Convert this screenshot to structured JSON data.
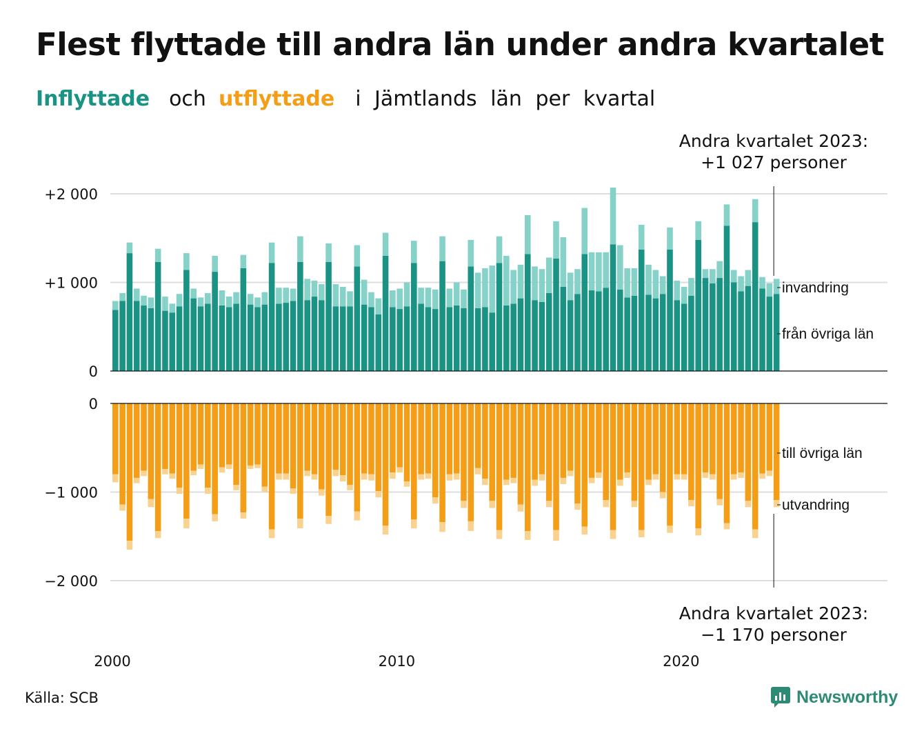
{
  "title": "Flest flyttade till andra län under andra kvartalet",
  "subtitle": {
    "inflow_word": "Inflyttade",
    "and_word": "och",
    "outflow_word": "utflyttade",
    "rest": "i Jämtlands län per kvartal"
  },
  "annotation_top": {
    "line1": "Andra kvartalet 2023:",
    "line2": "+1 027 personer"
  },
  "annotation_bottom": {
    "line1": "Andra kvartalet 2023:",
    "line2": "−1 170 personer"
  },
  "source": "Källa: SCB",
  "logo_text": "Newsworthy",
  "colors": {
    "inflow_domestic": "#1a9384",
    "inflow_immigration": "#86d1c8",
    "outflow_domestic": "#f49d17",
    "outflow_emigration": "#fad28f",
    "grid": "#dddddd"
  },
  "chart_data": [
    {
      "type": "bar",
      "stacked": true,
      "panel": "inflyttade",
      "title": "Inflyttade",
      "x_start": "2000 Q1",
      "categories_note": "kvartal 2000 Q1 – 2023 Q2",
      "x_ticks": [
        "2000",
        "2010",
        "2020"
      ],
      "y_ticks": [
        0,
        1000,
        2000
      ],
      "y_tick_labels": [
        "0",
        "+1 000",
        "+2 000"
      ],
      "ylim": [
        0,
        2070
      ],
      "grid": true,
      "series": [
        {
          "name": "från övriga län",
          "values": [
            690,
            790,
            1330,
            790,
            740,
            710,
            1230,
            680,
            660,
            730,
            1140,
            820,
            730,
            760,
            1120,
            740,
            720,
            760,
            1160,
            750,
            720,
            750,
            1220,
            760,
            770,
            790,
            1230,
            800,
            840,
            800,
            1230,
            730,
            730,
            730,
            1180,
            750,
            720,
            640,
            1300,
            720,
            700,
            730,
            1220,
            760,
            720,
            700,
            1240,
            720,
            740,
            710,
            1180,
            710,
            720,
            660,
            1220,
            740,
            760,
            820,
            1320,
            800,
            780,
            880,
            1270,
            950,
            800,
            870,
            1320,
            910,
            900,
            940,
            1430,
            920,
            830,
            850,
            1370,
            860,
            820,
            870,
            1370,
            800,
            760,
            850,
            1480,
            1050,
            990,
            1050,
            1640,
            1000,
            900,
            960,
            1680,
            930,
            840,
            870
          ],
          "estimated": true
        },
        {
          "name": "invandring",
          "values": [
            100,
            90,
            120,
            140,
            110,
            120,
            150,
            160,
            100,
            140,
            190,
            110,
            100,
            120,
            180,
            170,
            120,
            130,
            150,
            120,
            110,
            140,
            230,
            180,
            170,
            140,
            290,
            240,
            180,
            180,
            210,
            250,
            220,
            170,
            240,
            280,
            170,
            180,
            260,
            190,
            230,
            270,
            250,
            180,
            220,
            220,
            280,
            210,
            260,
            210,
            300,
            400,
            440,
            530,
            300,
            560,
            380,
            380,
            440,
            380,
            370,
            400,
            420,
            560,
            310,
            280,
            520,
            430,
            440,
            400,
            640,
            500,
            330,
            310,
            280,
            340,
            320,
            200,
            250,
            220,
            190,
            200,
            210,
            100,
            160,
            190,
            240,
            140,
            170,
            180,
            260,
            130,
            150,
            170
          ],
          "estimated": true
        }
      ]
    },
    {
      "type": "bar",
      "stacked": true,
      "panel": "utflyttade",
      "title": "utflyttade",
      "x_ticks": [
        "2000",
        "2010",
        "2020"
      ],
      "y_ticks": [
        0,
        -1000,
        -2000
      ],
      "y_tick_labels": [
        "0",
        "−1 000",
        "−2 000"
      ],
      "ylim": [
        -2070,
        0
      ],
      "grid": true,
      "series": [
        {
          "name": "till övriga län",
          "values": [
            -800,
            -1140,
            -1550,
            -840,
            -760,
            -1080,
            -1440,
            -740,
            -790,
            -950,
            -1300,
            -760,
            -690,
            -950,
            -1250,
            -720,
            -690,
            -920,
            -1230,
            -700,
            -690,
            -940,
            -1420,
            -790,
            -790,
            -960,
            -1300,
            -760,
            -800,
            -970,
            -1270,
            -750,
            -810,
            -920,
            -1220,
            -790,
            -800,
            -990,
            -1380,
            -780,
            -720,
            -880,
            -1310,
            -800,
            -790,
            -1060,
            -1340,
            -800,
            -790,
            -1100,
            -1330,
            -730,
            -850,
            -1100,
            -1430,
            -860,
            -840,
            -1140,
            -1440,
            -860,
            -800,
            -1100,
            -1430,
            -840,
            -760,
            -1130,
            -1390,
            -840,
            -780,
            -1090,
            -1430,
            -860,
            -780,
            -1100,
            -1430,
            -860,
            -800,
            -1000,
            -1380,
            -800,
            -800,
            -1090,
            -1410,
            -780,
            -800,
            -1080,
            -1350,
            -800,
            -780,
            -1100,
            -1420,
            -790,
            -760,
            -1090
          ],
          "estimated": true
        },
        {
          "name": "utvandring",
          "values": [
            -90,
            -70,
            -100,
            -60,
            -60,
            -90,
            -80,
            -60,
            -60,
            -70,
            -110,
            -50,
            -50,
            -70,
            -80,
            -60,
            -50,
            -60,
            -70,
            -40,
            -40,
            -60,
            -100,
            -70,
            -70,
            -60,
            -110,
            -60,
            -60,
            -70,
            -90,
            -70,
            -70,
            -60,
            -100,
            -70,
            -70,
            -70,
            -100,
            -70,
            -60,
            -60,
            -100,
            -60,
            -60,
            -70,
            -110,
            -70,
            -70,
            -80,
            -110,
            -70,
            -70,
            -80,
            -100,
            -60,
            -60,
            -80,
            -100,
            -70,
            -70,
            -70,
            -120,
            -70,
            -60,
            -70,
            -90,
            -60,
            -60,
            -80,
            -100,
            -70,
            -60,
            -70,
            -80,
            -60,
            -60,
            -70,
            -80,
            -60,
            -60,
            -70,
            -80,
            -60,
            -60,
            -70,
            -70,
            -60,
            -60,
            -70,
            -100,
            -60,
            -60,
            -80
          ],
          "estimated": true
        }
      ]
    }
  ]
}
